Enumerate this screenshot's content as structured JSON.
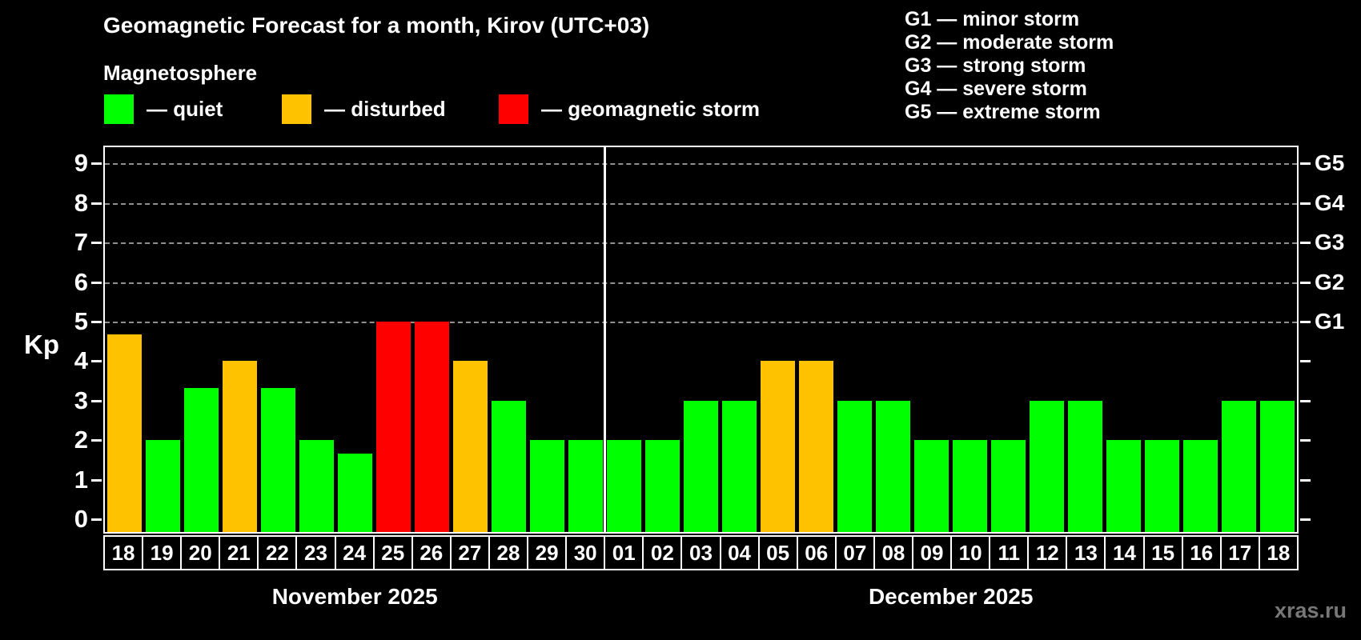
{
  "title": "Geomagnetic Forecast for a month, Kirov (UTC+03)",
  "subtitle": "Magnetosphere",
  "legend": [
    {
      "key": "quiet",
      "label": "— quiet"
    },
    {
      "key": "disturbed",
      "label": "— disturbed"
    },
    {
      "key": "storm",
      "label": "— geomagnetic storm"
    }
  ],
  "g_scale_legend": [
    "G1 — minor storm",
    "G2 — moderate storm",
    "G3 — strong storm",
    "G4 — severe storm",
    "G5 — extreme storm"
  ],
  "colors": {
    "quiet": "#00ff00",
    "disturbed": "#ffc200",
    "storm": "#ff0000",
    "axis": "#ffffff",
    "grid": "#aaaaaa",
    "watermark": "#777777",
    "background": "#000000"
  },
  "axis": {
    "kp_label": "Kp",
    "y_ticks": [
      0,
      1,
      2,
      3,
      4,
      5,
      6,
      7,
      8,
      9
    ],
    "gridline_kp": [
      5,
      6,
      7,
      8,
      9
    ],
    "g_labels": [
      {
        "kp": 5,
        "label": "G1"
      },
      {
        "kp": 6,
        "label": "G2"
      },
      {
        "kp": 7,
        "label": "G3"
      },
      {
        "kp": 8,
        "label": "G4"
      },
      {
        "kp": 9,
        "label": "G5"
      }
    ]
  },
  "watermark": "xras.ru",
  "chart_data": {
    "type": "bar",
    "title": "Geomagnetic Forecast for a month, Kirov (UTC+03)",
    "ylabel": "Kp",
    "ylim": [
      0,
      9
    ],
    "grid": "horizontal dashed lines at Kp 5,6,7,8,9",
    "legend_position": "top-left",
    "months": [
      {
        "label": "November 2025",
        "days": [
          {
            "day": "18",
            "kp": 4.67,
            "status": "disturbed"
          },
          {
            "day": "19",
            "kp": 2,
            "status": "quiet"
          },
          {
            "day": "20",
            "kp": 3.33,
            "status": "quiet"
          },
          {
            "day": "21",
            "kp": 4,
            "status": "disturbed"
          },
          {
            "day": "22",
            "kp": 3.33,
            "status": "quiet"
          },
          {
            "day": "23",
            "kp": 2,
            "status": "quiet"
          },
          {
            "day": "24",
            "kp": 1.67,
            "status": "quiet"
          },
          {
            "day": "25",
            "kp": 5,
            "status": "storm"
          },
          {
            "day": "26",
            "kp": 5,
            "status": "storm"
          },
          {
            "day": "27",
            "kp": 4,
            "status": "disturbed"
          },
          {
            "day": "28",
            "kp": 3,
            "status": "quiet"
          },
          {
            "day": "29",
            "kp": 2,
            "status": "quiet"
          },
          {
            "day": "30",
            "kp": 2,
            "status": "quiet"
          }
        ]
      },
      {
        "label": "December 2025",
        "days": [
          {
            "day": "01",
            "kp": 2,
            "status": "quiet"
          },
          {
            "day": "02",
            "kp": 2,
            "status": "quiet"
          },
          {
            "day": "03",
            "kp": 3,
            "status": "quiet"
          },
          {
            "day": "04",
            "kp": 3,
            "status": "quiet"
          },
          {
            "day": "05",
            "kp": 4,
            "status": "disturbed"
          },
          {
            "day": "06",
            "kp": 4,
            "status": "disturbed"
          },
          {
            "day": "07",
            "kp": 3,
            "status": "quiet"
          },
          {
            "day": "08",
            "kp": 3,
            "status": "quiet"
          },
          {
            "day": "09",
            "kp": 2,
            "status": "quiet"
          },
          {
            "day": "10",
            "kp": 2,
            "status": "quiet"
          },
          {
            "day": "11",
            "kp": 2,
            "status": "quiet"
          },
          {
            "day": "12",
            "kp": 3,
            "status": "quiet"
          },
          {
            "day": "13",
            "kp": 3,
            "status": "quiet"
          },
          {
            "day": "14",
            "kp": 2,
            "status": "quiet"
          },
          {
            "day": "15",
            "kp": 2,
            "status": "quiet"
          },
          {
            "day": "16",
            "kp": 2,
            "status": "quiet"
          },
          {
            "day": "17",
            "kp": 3,
            "status": "quiet"
          },
          {
            "day": "18",
            "kp": 3,
            "status": "quiet"
          }
        ]
      }
    ],
    "categories": [
      "18",
      "19",
      "20",
      "21",
      "22",
      "23",
      "24",
      "25",
      "26",
      "27",
      "28",
      "29",
      "30",
      "01",
      "02",
      "03",
      "04",
      "05",
      "06",
      "07",
      "08",
      "09",
      "10",
      "11",
      "12",
      "13",
      "14",
      "15",
      "16",
      "17",
      "18"
    ],
    "values": [
      4.67,
      2,
      3.33,
      4,
      3.33,
      2,
      1.67,
      5,
      5,
      4,
      3,
      2,
      2,
      2,
      2,
      3,
      3,
      4,
      4,
      3,
      3,
      2,
      2,
      2,
      3,
      3,
      2,
      2,
      2,
      3,
      3
    ],
    "statuses": [
      "disturbed",
      "quiet",
      "quiet",
      "disturbed",
      "quiet",
      "quiet",
      "quiet",
      "storm",
      "storm",
      "disturbed",
      "quiet",
      "quiet",
      "quiet",
      "quiet",
      "quiet",
      "quiet",
      "quiet",
      "disturbed",
      "disturbed",
      "quiet",
      "quiet",
      "quiet",
      "quiet",
      "quiet",
      "quiet",
      "quiet",
      "quiet",
      "quiet",
      "quiet",
      "quiet",
      "quiet"
    ]
  }
}
